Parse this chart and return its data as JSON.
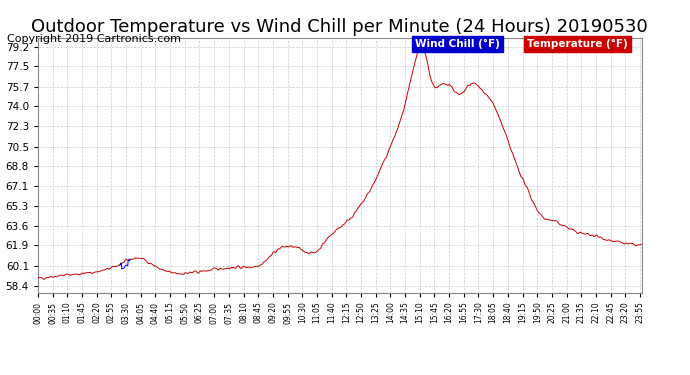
{
  "title": "Outdoor Temperature vs Wind Chill per Minute (24 Hours) 20190530",
  "copyright": "Copyright 2019 Cartronics.com",
  "legend_wind_chill": "Wind Chill (°F)",
  "legend_temperature": "Temperature (°F)",
  "wind_chill_color": "#0000FF",
  "wind_chill_bg": "#0000CC",
  "temperature_color": "#FF0000",
  "temperature_bg": "#CC0000",
  "line_color": "#CC0000",
  "yticks": [
    58.4,
    60.1,
    61.9,
    63.6,
    65.3,
    67.1,
    68.8,
    70.5,
    72.3,
    74.0,
    75.7,
    77.5,
    79.2
  ],
  "ylim": [
    57.8,
    80.0
  ],
  "background_color": "#FFFFFF",
  "grid_color": "#CCCCCC",
  "title_fontsize": 13,
  "copyright_fontsize": 8,
  "figsize": [
    6.9,
    3.75
  ],
  "dpi": 100
}
